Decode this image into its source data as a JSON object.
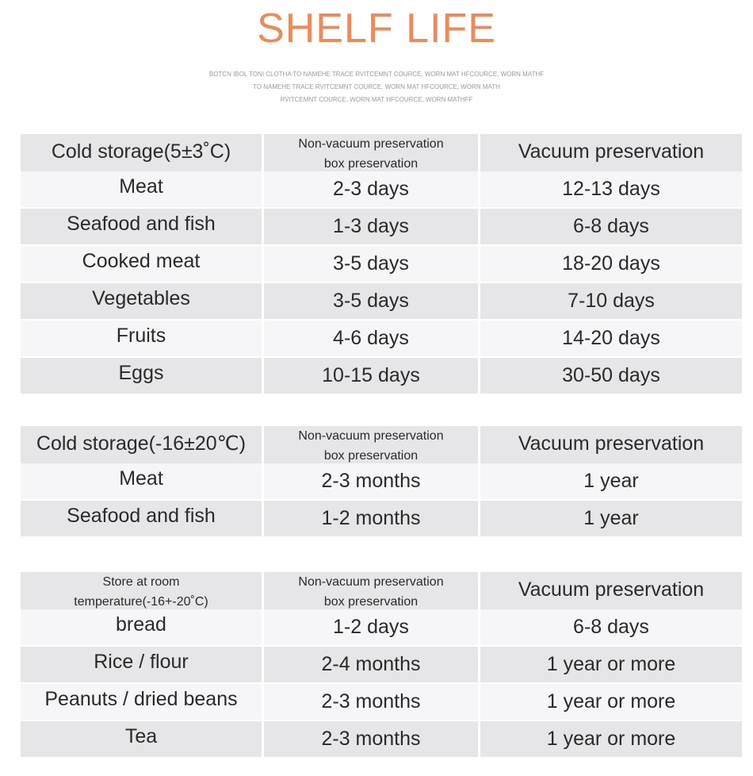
{
  "title": "SHELF LIFE",
  "subtitle_lines": [
    "BOTCN IBOL TONI CLOTHA TO NAMEHE TRACE RVITCEMNT COURCE, WORN MAT HFCOURCE, WORN MATHF",
    "TO NAMEHE TRACE RVITCEMNT COURCE, WORN MAT HFCOURCE, WORN MATH",
    "RVITCEMNT COURCE, WORN MAT HFCOURCE, WORN MATHFF"
  ],
  "tables": [
    {
      "header": {
        "col1": "Cold storage(5±3˚C)",
        "col2_line1": "Non-vacuum preservation",
        "col2_line2": "box preservation",
        "col3": "Vacuum preservation"
      },
      "rows": [
        {
          "item": "Meat",
          "non_vacuum": "2-3 days",
          "vacuum": "12-13 days"
        },
        {
          "item": "Seafood and fish",
          "non_vacuum": "1-3 days",
          "vacuum": "6-8 days"
        },
        {
          "item": "Cooked meat",
          "non_vacuum": "3-5 days",
          "vacuum": "18-20 days"
        },
        {
          "item": "Vegetables",
          "non_vacuum": "3-5 days",
          "vacuum": "7-10 days"
        },
        {
          "item": "Fruits",
          "non_vacuum": "4-6 days",
          "vacuum": "14-20 days"
        },
        {
          "item": "Eggs",
          "non_vacuum": "10-15 days",
          "vacuum": "30-50 days"
        }
      ]
    },
    {
      "header": {
        "col1": "Cold storage(-16±20℃)",
        "col2_line1": "Non-vacuum preservation",
        "col2_line2": "box preservation",
        "col3": "Vacuum preservation"
      },
      "rows": [
        {
          "item": "Meat",
          "non_vacuum": "2-3 months",
          "vacuum": "1 year"
        },
        {
          "item": "Seafood and fish",
          "non_vacuum": "1-2 months",
          "vacuum": "1 year"
        }
      ]
    },
    {
      "header": {
        "col1_line1": "Store at room",
        "col1_line2": "temperature(-16+-20˚C)",
        "col2_line1": "Non-vacuum preservation",
        "col2_line2": "box preservation",
        "col3": "Vacuum preservation"
      },
      "rows": [
        {
          "item": "bread",
          "non_vacuum": "1-2 days",
          "vacuum": "6-8 days"
        },
        {
          "item": "Rice / flour",
          "non_vacuum": "2-4 months",
          "vacuum": "1 year or more"
        },
        {
          "item": "Peanuts / dried beans",
          "non_vacuum": "2-3 months",
          "vacuum": "1 year or more"
        },
        {
          "item": "Tea",
          "non_vacuum": "2-3 months",
          "vacuum": "1 year or more"
        }
      ]
    }
  ]
}
